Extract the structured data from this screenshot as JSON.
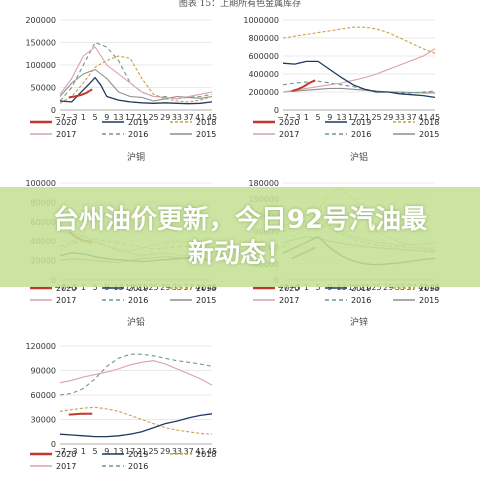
{
  "header_title": "图表 15：上期所有色金属库存",
  "banner": {
    "headline": "台州油价更新，今日92号汽油最新动态！"
  },
  "colors": {
    "2020": "#c0392b",
    "2019": "#1f3a5f",
    "2018": "#c8a04a",
    "2017": "#d9a0b0",
    "2016": "#6a9a8a",
    "2015": "#8e8e8e"
  },
  "chart_data": [
    {
      "type": "line",
      "label": "沪铜",
      "ylim": [
        0,
        200000
      ],
      "yticks": [
        "0",
        "50000",
        "100000",
        "150000",
        "200000"
      ],
      "xticks": [
        "−7",
        "−3",
        "1",
        "5",
        "9",
        "13",
        "17",
        "21",
        "25",
        "29",
        "33",
        "37",
        "41",
        "45"
      ],
      "legend": [
        "2020",
        "2019",
        "2018",
        "2017",
        "2016",
        "2015"
      ],
      "series": [
        {
          "name": "2020",
          "x": [
            -4,
            -2,
            0,
            2,
            4
          ],
          "y": [
            28000,
            30000,
            33000,
            38000,
            46000
          ]
        },
        {
          "name": "2019",
          "x": [
            -7,
            -3,
            1,
            3,
            5,
            7,
            9,
            13,
            17,
            21,
            25,
            29,
            33,
            37,
            41,
            45
          ],
          "y": [
            20000,
            18000,
            45000,
            58000,
            72000,
            55000,
            30000,
            22000,
            18000,
            16000,
            15000,
            16000,
            15000,
            14000,
            15000,
            18000
          ]
        },
        {
          "name": "2018",
          "x": [
            -7,
            -3,
            1,
            5,
            9,
            13,
            17,
            21,
            25,
            29,
            33,
            37,
            41,
            45
          ],
          "y": [
            15000,
            30000,
            60000,
            95000,
            110000,
            120000,
            115000,
            70000,
            35000,
            25000,
            20000,
            18000,
            22000,
            30000
          ]
        },
        {
          "name": "2017",
          "x": [
            -7,
            -3,
            1,
            5,
            9,
            13,
            17,
            21,
            25,
            29,
            33,
            37,
            41,
            45
          ],
          "y": [
            35000,
            70000,
            120000,
            140000,
            100000,
            80000,
            60000,
            40000,
            30000,
            28000,
            25000,
            30000,
            35000,
            40000
          ]
        },
        {
          "name": "2016",
          "x": [
            -7,
            -3,
            1,
            5,
            9,
            13,
            17,
            21,
            25,
            29,
            33,
            37,
            41,
            45
          ],
          "y": [
            20000,
            50000,
            100000,
            150000,
            140000,
            110000,
            60000,
            40000,
            30000,
            30000,
            25000,
            28000,
            30000,
            35000
          ]
        },
        {
          "name": "2015",
          "x": [
            -7,
            -3,
            1,
            5,
            9,
            13,
            17,
            21,
            25,
            29,
            33,
            37,
            41,
            45
          ],
          "y": [
            30000,
            60000,
            80000,
            90000,
            70000,
            40000,
            30000,
            28000,
            20000,
            25000,
            30000,
            28000,
            26000,
            30000
          ]
        }
      ]
    },
    {
      "type": "line",
      "label": "沪铝",
      "ylim": [
        0,
        1000000
      ],
      "yticks": [
        "0",
        "200000",
        "400000",
        "600000",
        "800000",
        "1000000"
      ],
      "xticks": [
        "−7",
        "−3",
        "1",
        "5",
        "9",
        "13",
        "17",
        "21",
        "25",
        "29",
        "33",
        "37",
        "41",
        "45"
      ],
      "legend": [
        "2020",
        "2019",
        "2018",
        "2017",
        "2016",
        "2015"
      ],
      "series": [
        {
          "name": "2020",
          "x": [
            -4,
            -2,
            0,
            2,
            4
          ],
          "y": [
            210000,
            230000,
            260000,
            300000,
            330000
          ]
        },
        {
          "name": "2019",
          "x": [
            -7,
            -3,
            1,
            5,
            9,
            13,
            17,
            21,
            25,
            29,
            33,
            37,
            41,
            45
          ],
          "y": [
            520000,
            510000,
            540000,
            540000,
            450000,
            360000,
            280000,
            230000,
            200000,
            200000,
            180000,
            170000,
            160000,
            140000
          ]
        },
        {
          "name": "2018",
          "x": [
            -7,
            -3,
            1,
            5,
            9,
            13,
            17,
            21,
            25,
            29,
            33,
            37,
            41,
            45
          ],
          "y": [
            800000,
            820000,
            840000,
            860000,
            880000,
            900000,
            920000,
            920000,
            900000,
            860000,
            800000,
            740000,
            680000,
            630000
          ]
        },
        {
          "name": "2017",
          "x": [
            -7,
            -3,
            1,
            5,
            9,
            13,
            17,
            21,
            25,
            29,
            33,
            37,
            41,
            45
          ],
          "y": [
            200000,
            220000,
            240000,
            260000,
            280000,
            300000,
            330000,
            360000,
            400000,
            450000,
            500000,
            550000,
            600000,
            680000
          ]
        },
        {
          "name": "2016",
          "x": [
            -7,
            -3,
            1,
            5,
            9,
            13,
            17,
            21,
            25,
            29,
            33,
            37,
            41,
            45
          ],
          "y": [
            280000,
            300000,
            310000,
            320000,
            300000,
            280000,
            260000,
            230000,
            210000,
            200000,
            190000,
            190000,
            200000,
            210000
          ]
        },
        {
          "name": "2015",
          "x": [
            -7,
            -3,
            1,
            5,
            9,
            13,
            17,
            21,
            25,
            29,
            33,
            37,
            41,
            45
          ],
          "y": [
            200000,
            210000,
            220000,
            230000,
            240000,
            240000,
            230000,
            220000,
            210000,
            200000,
            200000,
            195000,
            190000,
            190000
          ]
        }
      ]
    },
    {
      "type": "line",
      "label": "沪铅",
      "ylim": [
        0,
        100000
      ],
      "yticks": [
        "0",
        "20000",
        "40000",
        "60000",
        "80000",
        "100000"
      ],
      "xticks": [
        "−7",
        "−3",
        "1",
        "5",
        "9",
        "13",
        "17",
        "21",
        "25",
        "29",
        "33",
        "37",
        "41",
        "45"
      ],
      "legend": [
        "2020",
        "2019",
        "2018",
        "2017",
        "2016",
        "2015"
      ],
      "series": [
        {
          "name": "2020",
          "x": [
            -4,
            -2,
            0,
            2,
            4
          ],
          "y": [
            50000,
            45000,
            42000,
            40000,
            38000
          ]
        },
        {
          "name": "2019",
          "x": [
            -7,
            -3,
            1,
            5,
            9,
            13,
            17,
            21,
            25,
            29,
            33,
            37,
            41,
            45
          ],
          "y": [
            25000,
            28000,
            27000,
            24000,
            22000,
            21000,
            20000,
            19000,
            20000,
            21000,
            22000,
            23000,
            22000,
            20000
          ]
        },
        {
          "name": "2018",
          "x": [
            -7,
            -3,
            1,
            5,
            9,
            13,
            17,
            21,
            25,
            29,
            33,
            37,
            41,
            45
          ],
          "y": [
            30000,
            40000,
            45000,
            38000,
            35000,
            32000,
            30000,
            33000,
            36000,
            38000,
            40000,
            38000,
            36000,
            34000
          ]
        },
        {
          "name": "2017",
          "x": [
            -7,
            -3,
            1,
            5,
            9,
            13,
            17,
            21,
            25,
            29,
            33,
            37,
            41,
            45
          ],
          "y": [
            50000,
            48000,
            46000,
            40000,
            35000,
            30000,
            28000,
            25000,
            27000,
            28000,
            26000,
            25000,
            27000,
            28000
          ]
        },
        {
          "name": "2016",
          "x": [
            -7,
            -3,
            1,
            5,
            9,
            13,
            17,
            21,
            25,
            29,
            33,
            37,
            41,
            45
          ],
          "y": [
            35000,
            38000,
            40000,
            42000,
            40000,
            38000,
            36000,
            34000,
            32000,
            33000,
            34000,
            35000,
            36000,
            37000
          ]
        },
        {
          "name": "2015",
          "x": [
            -7,
            -3,
            1,
            5,
            9,
            13,
            17,
            21,
            25,
            29,
            33,
            37,
            41,
            45
          ],
          "y": [
            20000,
            22000,
            21000,
            20000,
            19000,
            18000,
            20000,
            22000,
            23000,
            24000,
            23000,
            22000,
            21000,
            20000
          ]
        }
      ]
    },
    {
      "type": "line",
      "label": "沪锌",
      "ylim": [
        0,
        180000
      ],
      "yticks": [
        "0",
        "30000",
        "60000",
        "90000",
        "120000",
        "150000",
        "180000"
      ],
      "xticks": [
        "−7",
        "−3",
        "1",
        "5",
        "9",
        "13",
        "17",
        "21",
        "25",
        "29",
        "33",
        "37",
        "41",
        "45"
      ],
      "legend": [
        "2020",
        "2019",
        "2018",
        "2017",
        "2016",
        "2015"
      ],
      "series": [
        {
          "name": "2020",
          "x": [
            -4,
            -2,
            0,
            2,
            4
          ],
          "y": [
            40000,
            45000,
            50000,
            55000,
            60000
          ]
        },
        {
          "name": "2019",
          "x": [
            -7,
            -3,
            1,
            5,
            9,
            13,
            17,
            21,
            25,
            29,
            33,
            37,
            41,
            45
          ],
          "y": [
            50000,
            60000,
            70000,
            80000,
            60000,
            45000,
            35000,
            30000,
            28000,
            30000,
            32000,
            35000,
            38000,
            40000
          ]
        },
        {
          "name": "2018",
          "x": [
            -7,
            -3,
            1,
            5,
            9,
            13,
            17,
            21,
            25,
            29,
            33,
            37,
            41,
            45
          ],
          "y": [
            60000,
            80000,
            100000,
            130000,
            160000,
            170000,
            150000,
            120000,
            90000,
            80000,
            70000,
            65000,
            60000,
            55000
          ]
        },
        {
          "name": "2017",
          "x": [
            -7,
            -3,
            1,
            5,
            9,
            13,
            17,
            21,
            25,
            29,
            33,
            37,
            41,
            45
          ],
          "y": [
            100000,
            110000,
            120000,
            115000,
            100000,
            90000,
            80000,
            75000,
            70000,
            68000,
            65000,
            66000,
            67000,
            70000
          ]
        },
        {
          "name": "2016",
          "x": [
            -7,
            -3,
            1,
            5,
            9,
            13,
            17,
            21,
            25,
            29,
            33,
            37,
            41,
            45
          ],
          "y": [
            90000,
            100000,
            110000,
            105000,
            95000,
            85000,
            75000,
            70000,
            65000,
            63000,
            62000,
            60000,
            58000,
            56000
          ]
        },
        {
          "name": "2015",
          "x": [
            -7,
            -3,
            1,
            5,
            9,
            13,
            17,
            21,
            25,
            29,
            33,
            37,
            41,
            45
          ],
          "y": [
            70000,
            75000,
            80000,
            78000,
            72000,
            68000,
            65000,
            62000,
            60000,
            58000,
            57000,
            55000,
            54000,
            52000
          ]
        }
      ]
    },
    {
      "type": "line",
      "label": "",
      "ylim": [
        0,
        120000
      ],
      "yticks": [
        "0",
        "30000",
        "60000",
        "90000",
        "120000"
      ],
      "xticks": [
        "−7",
        "−3",
        "1",
        "5",
        "9",
        "13",
        "17",
        "21",
        "25",
        "29",
        "33",
        "37",
        "41",
        "45"
      ],
      "legend": [
        "2020",
        "2019",
        "2018",
        "2017",
        "2016"
      ],
      "series": [
        {
          "name": "2020",
          "x": [
            -4,
            -2,
            0,
            2,
            4
          ],
          "y": [
            36000,
            36500,
            37000,
            37000,
            37000
          ]
        },
        {
          "name": "2019",
          "x": [
            -7,
            -3,
            1,
            5,
            9,
            13,
            17,
            21,
            25,
            29,
            33,
            37,
            41,
            45
          ],
          "y": [
            12000,
            11000,
            10000,
            9000,
            9000,
            10000,
            12000,
            15000,
            20000,
            25000,
            28000,
            32000,
            35000,
            37000
          ]
        },
        {
          "name": "2018",
          "x": [
            -7,
            -3,
            1,
            5,
            9,
            13,
            17,
            21,
            25,
            29,
            33,
            37,
            41,
            45
          ],
          "y": [
            40000,
            42000,
            44000,
            45000,
            43000,
            40000,
            35000,
            30000,
            25000,
            20000,
            17000,
            15000,
            13000,
            12000
          ]
        },
        {
          "name": "2017",
          "x": [
            -7,
            -3,
            1,
            5,
            9,
            13,
            17,
            21,
            25,
            29,
            33,
            37,
            41,
            45
          ],
          "y": [
            75000,
            78000,
            82000,
            85000,
            88000,
            92000,
            97000,
            100000,
            102000,
            98000,
            92000,
            86000,
            80000,
            72000
          ]
        },
        {
          "name": "2016",
          "x": [
            -7,
            -3,
            1,
            5,
            9,
            13,
            17,
            21,
            25,
            29,
            33,
            37,
            41,
            45
          ],
          "y": [
            60000,
            62000,
            68000,
            80000,
            95000,
            105000,
            110000,
            110000,
            108000,
            105000,
            102000,
            100000,
            98000,
            95000
          ]
        }
      ]
    }
  ]
}
